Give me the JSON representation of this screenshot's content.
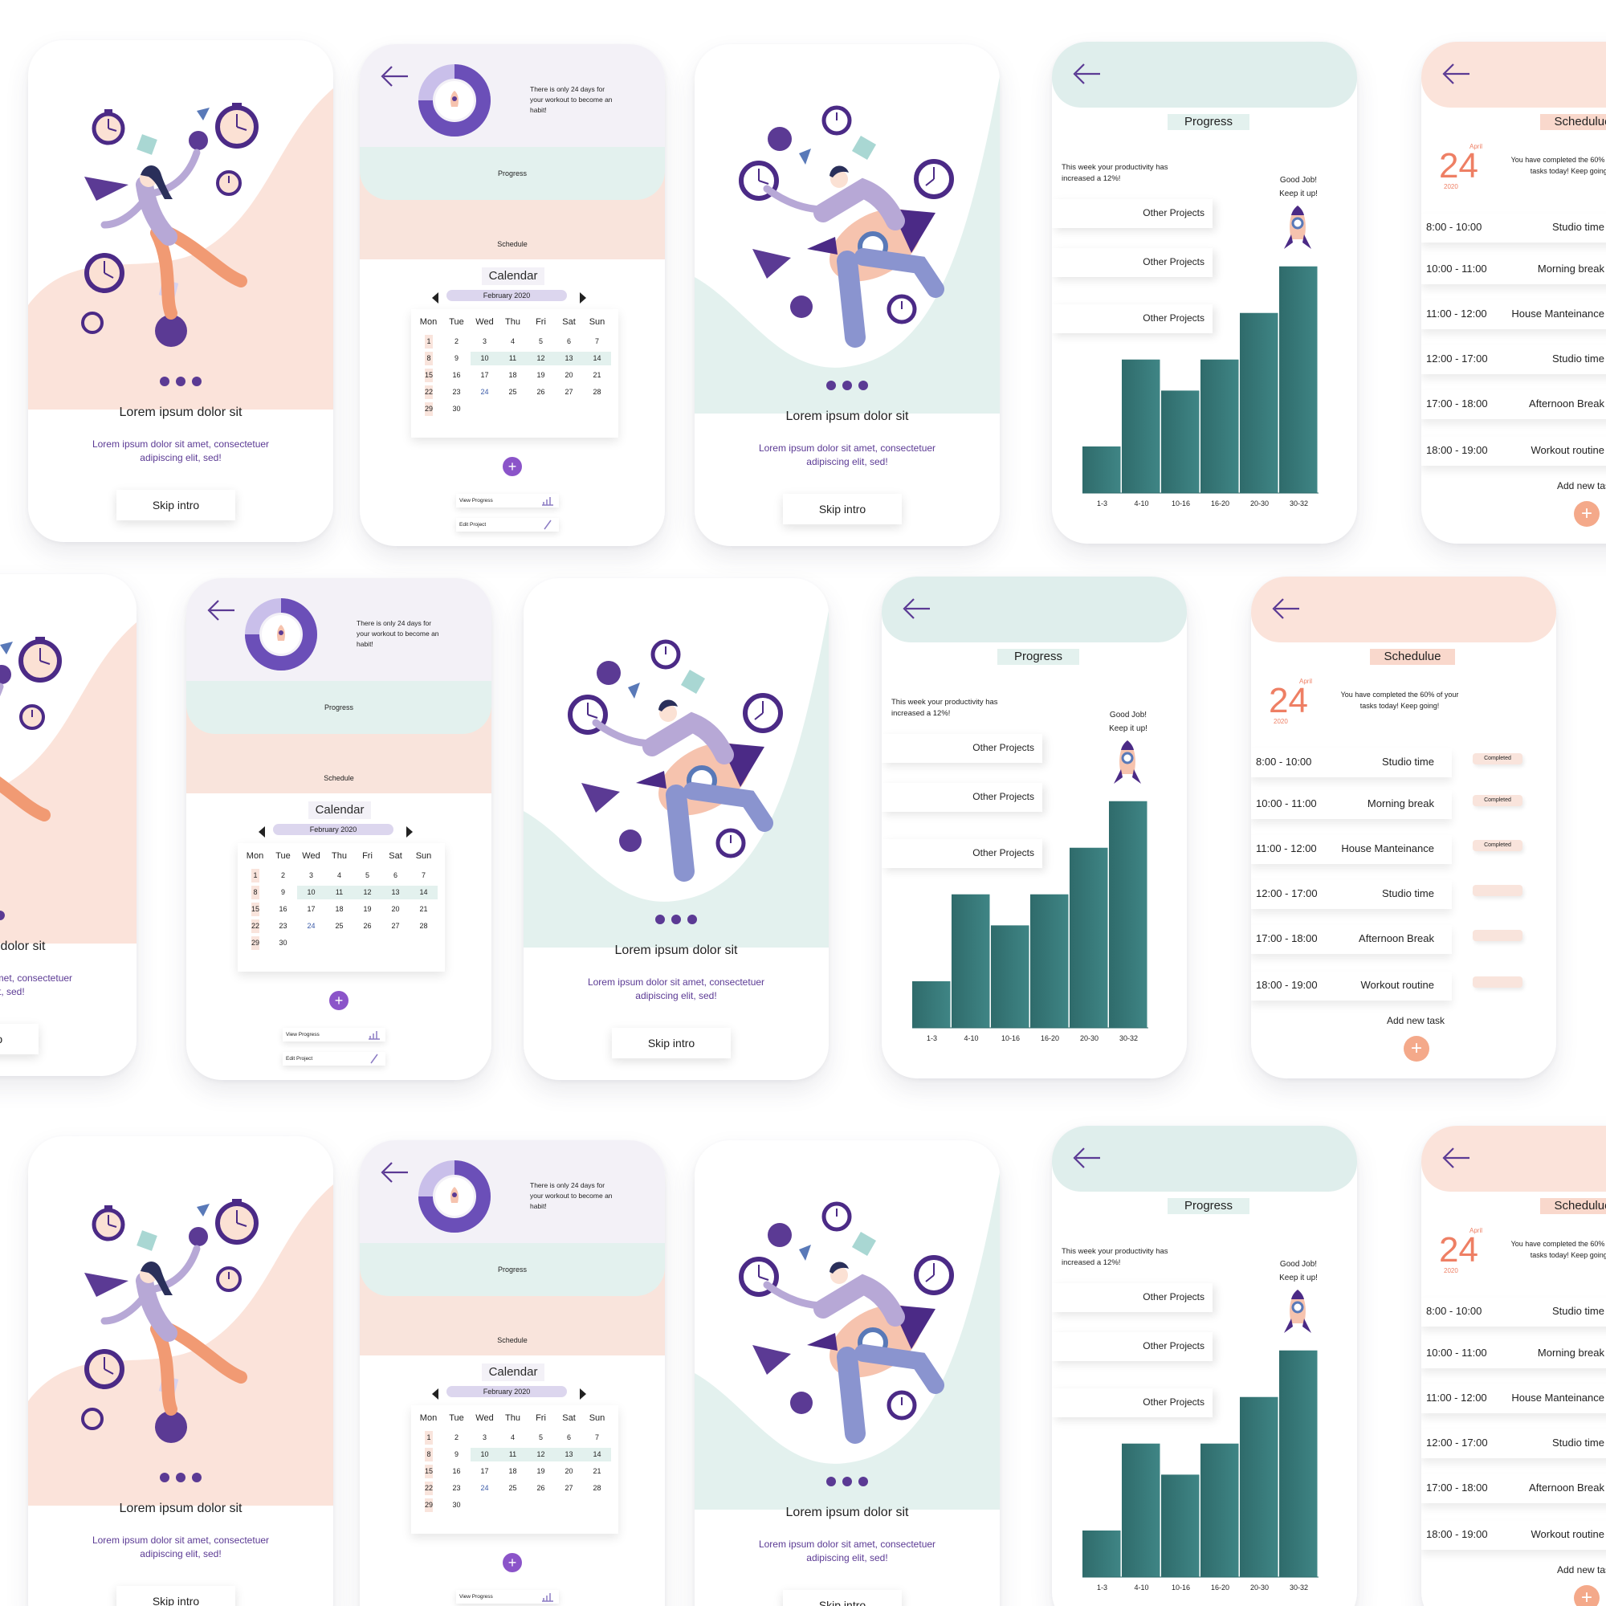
{
  "colors": {
    "purple": "#5b3a94",
    "mint": "#dfeeec",
    "peach": "#f9e4dc",
    "teal": "#2f6b6b",
    "accent_orange": "#ee7f64"
  },
  "intro": {
    "title": "Lorem ipsum dolor sit",
    "subtitle": "Lorem ipsum dolor sit amet, consectetuer adipiscing elit, sed!",
    "skip_label": "Skip intro"
  },
  "home": {
    "header_text": "There is only 24 days for your workout to become an habit!",
    "progress_label": "Progress",
    "schedule_label": "Schedule",
    "calendar_title": "Calendar",
    "month": "February 2020",
    "weekdays": [
      "Mon",
      "Tue",
      "Wed",
      "Thu",
      "Fri",
      "Sat",
      "Sun"
    ],
    "weeks": [
      [
        "1",
        "2",
        "3",
        "4",
        "5",
        "6",
        "7"
      ],
      [
        "8",
        "9",
        "10",
        "11",
        "12",
        "13",
        "14"
      ],
      [
        "15",
        "16",
        "17",
        "18",
        "19",
        "20",
        "21"
      ],
      [
        "22",
        "23",
        "24",
        "25",
        "26",
        "27",
        "28"
      ],
      [
        "29",
        "30",
        "",
        "",
        "",
        "",
        ""
      ]
    ],
    "add_label": "+",
    "view_progress": "View Progress",
    "edit_project": "Edit Project"
  },
  "progress": {
    "title": "Progress",
    "note": "This week your productivity has increased a 12%!",
    "good_job": "Good Job! Keep it up!",
    "projects": [
      "Other Projects",
      "Other Projects",
      "Other Projects"
    ]
  },
  "chart_data": {
    "type": "bar",
    "categories": [
      "1-3",
      "4-10",
      "10-16",
      "16-20",
      "20-30",
      "30-32"
    ],
    "values": [
      15,
      43,
      33,
      43,
      58,
      73
    ],
    "ylim": [
      0,
      75
    ],
    "color": "#2f6b6b",
    "grid": false
  },
  "schedule": {
    "title": "Schedulue",
    "month": "April",
    "day": "24",
    "year": "2020",
    "note": "You have completed the 60% of your tasks today! Keep going!",
    "rows": [
      {
        "time": "8:00 - 10:00",
        "name": "Studio time",
        "status": "Completed"
      },
      {
        "time": "10:00 - 11:00",
        "name": "Morning break",
        "status": "Completed"
      },
      {
        "time": "11:00 - 12:00",
        "name": "House Manteinance",
        "status": "Completed"
      },
      {
        "time": "12:00 - 17:00",
        "name": "Studio time",
        "status": ""
      },
      {
        "time": "17:00 - 18:00",
        "name": "Afternoon Break",
        "status": ""
      },
      {
        "time": "18:00 - 19:00",
        "name": "Workout routine",
        "status": ""
      }
    ],
    "add_task": "Add new task",
    "add_icon": "+"
  }
}
